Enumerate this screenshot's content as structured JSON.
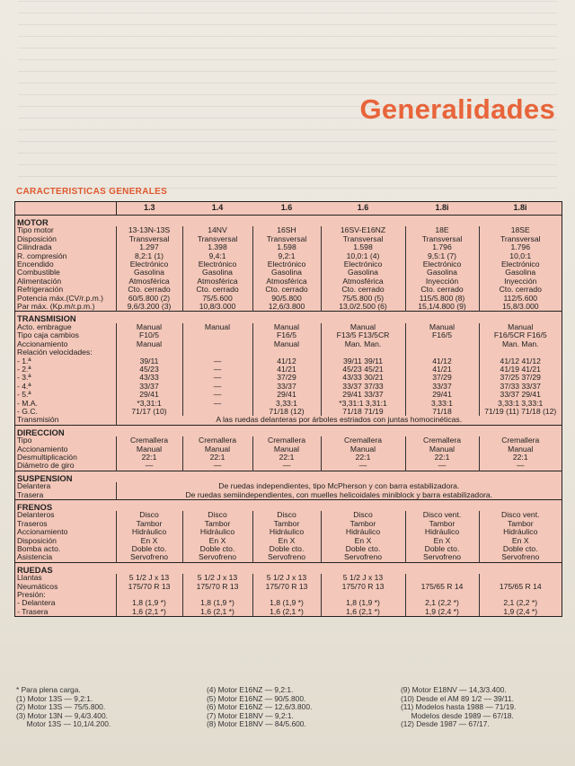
{
  "title": "Generalidades",
  "subtitle": "CARACTERISTICAS GENERALES",
  "columns": [
    "1.3",
    "1.4",
    "1.6",
    "1.6",
    "1.8i",
    "1.8i"
  ],
  "sections": [
    {
      "name": "MOTOR",
      "rows": [
        {
          "label": "Tipo motor",
          "vals": [
            "13-13N-13S",
            "14NV",
            "16SH",
            "16SV-E16NZ",
            "18E",
            "18SE"
          ]
        },
        {
          "label": "Disposición",
          "vals": [
            "Transversal",
            "Transversal",
            "Transversal",
            "Transversal",
            "Transversal",
            "Transversal"
          ]
        },
        {
          "label": "Cilindrada",
          "vals": [
            "1.297",
            "1.398",
            "1.598",
            "1.598",
            "1.796",
            "1.796"
          ]
        },
        {
          "label": "R. compresión",
          "vals": [
            "8,2:1 (1)",
            "9,4:1",
            "9,2:1",
            "10,0:1 (4)",
            "9,5:1 (7)",
            "10,0:1"
          ]
        },
        {
          "label": "Encendido",
          "vals": [
            "Electrónico",
            "Electrónico",
            "Electrónico",
            "Electrónico",
            "Electrónico",
            "Electrónico"
          ]
        },
        {
          "label": "Combustible",
          "vals": [
            "Gasolina",
            "Gasolina",
            "Gasolina",
            "Gasolina",
            "Gasolina",
            "Gasolina"
          ]
        },
        {
          "label": "Alimentación",
          "vals": [
            "Atmosférica",
            "Atmosférica",
            "Atmosférica",
            "Atmosférica",
            "Inyección",
            "Inyección"
          ]
        },
        {
          "label": "Refrigeración",
          "vals": [
            "Cto. cerrado",
            "Cto. cerrado",
            "Cto. cerrado",
            "Cto. cerrado",
            "Cto. cerrado",
            "Cto. cerrado"
          ]
        },
        {
          "label": "Potencia máx.(CV/r.p.m.)",
          "vals": [
            "60/5.800 (2)",
            "75/5.600",
            "90/5.800",
            "75/5.800 (5)",
            "115/5.800 (8)",
            "112/5.600"
          ]
        },
        {
          "label": "Par máx. (Kp.m/r.p.m.)",
          "vals": [
            "9,6/3.200 (3)",
            "10,8/3.000",
            "12,6/3.800",
            "13,0/2.500 (6)",
            "15,1/4.800 (9)",
            "15,8/3.000"
          ]
        }
      ]
    },
    {
      "name": "TRANSMISION",
      "rows": [
        {
          "label": "Acto. embrague",
          "vals": [
            "Manual",
            "Manual",
            "Manual",
            "Manual",
            "Manual",
            "Manual"
          ]
        },
        {
          "label": "Tipo caja cambios",
          "vals": [
            "F10/5",
            "",
            "F16/5",
            "F13/5   F13/5CR",
            "F16/5",
            "F16/5CR   F16/5"
          ]
        },
        {
          "label": "Accionamiento",
          "vals": [
            "Manual",
            "",
            "Manual",
            "Man.   Man.",
            "",
            "Man.   Man."
          ]
        },
        {
          "label": "Relación velocidades:",
          "vals": [
            "",
            "",
            "",
            "",
            "",
            ""
          ]
        },
        {
          "label": "- 1.ª",
          "vals": [
            "39/11",
            "—",
            "41/12",
            "39/11   39/11",
            "41/12",
            "41/12   41/12"
          ]
        },
        {
          "label": "- 2.ª",
          "vals": [
            "45/23",
            "—",
            "41/21",
            "45/23   45/21",
            "41/21",
            "41/19   41/21"
          ]
        },
        {
          "label": "- 3.ª",
          "vals": [
            "43/33",
            "—",
            "37/29",
            "43/33   30/21",
            "37/29",
            "37/25   37/29"
          ]
        },
        {
          "label": "- 4.ª",
          "vals": [
            "33/37",
            "—",
            "33/37",
            "33/37   37/33",
            "33/37",
            "37/33   33/37"
          ]
        },
        {
          "label": "- 5.ª",
          "vals": [
            "29/41",
            "—",
            "29/41",
            "29/41   33/37",
            "29/41",
            "33/37   29/41"
          ]
        },
        {
          "label": "- M.A.",
          "vals": [
            "*3,31:1",
            "—",
            "3,33:1",
            "*3,31:1   3,31:1",
            "3,33:1",
            "3,33:1   3,33:1"
          ]
        },
        {
          "label": "- G.C.",
          "vals": [
            "71/17 (10)",
            "",
            "71/18 (12)",
            "71/18   71/19",
            "71/18",
            "71/19 (11)   71/18 (12)"
          ]
        },
        {
          "label": "Transmisión",
          "span": "A las ruedas delanteras por árboles estriados con juntas homocinéticas."
        }
      ]
    },
    {
      "name": "DIRECCION",
      "rows": [
        {
          "label": "Tipo",
          "vals": [
            "Cremallera",
            "Cremallera",
            "Cremallera",
            "Cremallera",
            "Cremallera",
            "Cremallera"
          ]
        },
        {
          "label": "Accionamiento",
          "vals": [
            "Manual",
            "Manual",
            "Manual",
            "Manual",
            "Manual",
            "Manual"
          ]
        },
        {
          "label": "Desmultiplicación",
          "vals": [
            "22:1",
            "22:1",
            "22:1",
            "22:1",
            "22:1",
            "22:1"
          ]
        },
        {
          "label": "Diámetro de giro",
          "vals": [
            "—",
            "—",
            "—",
            "—",
            "—",
            "—"
          ]
        }
      ]
    },
    {
      "name": "SUSPENSION",
      "rows": [
        {
          "label": "Delantera",
          "span": "De ruedas independientes, tipo McPherson y con barra estabilizadora."
        },
        {
          "label": "Trasera",
          "span": "De ruedas semiindependientes, con muelles helicoidales miniblock y barra estabilizadora."
        }
      ]
    },
    {
      "name": "FRENOS",
      "rows": [
        {
          "label": "Delanteros",
          "vals": [
            "Disco",
            "Disco",
            "Disco",
            "Disco",
            "Disco vent.",
            "Disco vent."
          ]
        },
        {
          "label": "Traseros",
          "vals": [
            "Tambor",
            "Tambor",
            "Tambor",
            "Tambor",
            "Tambor",
            "Tambor"
          ]
        },
        {
          "label": "Accionamiento",
          "vals": [
            "Hidráulico",
            "Hidráulico",
            "Hidráulico",
            "Hidráulico",
            "Hidráulico",
            "Hidráulico"
          ]
        },
        {
          "label": "Disposición",
          "vals": [
            "En X",
            "En X",
            "En X",
            "En X",
            "En X",
            "En X"
          ]
        },
        {
          "label": "Bomba acto.",
          "vals": [
            "Doble cto.",
            "Doble cto.",
            "Doble cto.",
            "Doble cto.",
            "Doble cto.",
            "Doble cto."
          ]
        },
        {
          "label": "Asistencia",
          "vals": [
            "Servofreno",
            "Servofreno",
            "Servofreno",
            "Servofreno",
            "Servofreno",
            "Servofreno"
          ]
        }
      ]
    },
    {
      "name": "RUEDAS",
      "rows": [
        {
          "label": "Llantas",
          "vals": [
            "5 1/2 J x 13",
            "5 1/2 J x 13",
            "5 1/2 J x 13",
            "5 1/2 J x 13",
            "",
            ""
          ]
        },
        {
          "label": "Neumáticos",
          "vals": [
            "175/70 R 13",
            "175/70 R 13",
            "175/70 R 13",
            "175/70 R 13",
            "175/65 R 14",
            "175/65 R 14"
          ]
        },
        {
          "label": "Presión:",
          "vals": [
            "",
            "",
            "",
            "",
            "",
            ""
          ]
        },
        {
          "label": "- Delantera",
          "vals": [
            "1,8 (1,9 *)",
            "1,8 (1,9 *)",
            "1,8 (1,9 *)",
            "1,8 (1,9 *)",
            "2,1 (2,2 *)",
            "2,1 (2,2 *)"
          ]
        },
        {
          "label": "- Trasera",
          "vals": [
            "1,6 (2,1 *)",
            "1,6 (2,1 *)",
            "1,6 (2,1 *)",
            "1,6 (2,1 *)",
            "1,9 (2,4 *)",
            "1,9 (2,4 *)"
          ]
        }
      ]
    }
  ],
  "footnotes": {
    "col1": [
      "* Para plena carga.",
      "(1) Motor 13S — 9,2:1.",
      "(2) Motor 13S — 75/5.800.",
      "(3) Motor 13N — 9,4/3.400.",
      "     Motor 13S — 10,1/4.200."
    ],
    "col2": [
      "(4) Motor E16NZ — 9,2:1.",
      "(5) Motor E16NZ — 90/5.800.",
      "(6) Motor E16NZ — 12,6/3.800.",
      "(7) Motor E18NV — 9,2:1.",
      "(8) Motor E18NV — 84/5.600."
    ],
    "col3": [
      "(9) Motor E18NV — 14,3/3.400.",
      "(10) Desde el AM 89 1/2 — 39/11.",
      "(11) Modelos hasta 1988 — 71/19.",
      "     Modelos desde 1989 — 67/18.",
      "(12) Desde 1987 — 67/17."
    ]
  }
}
